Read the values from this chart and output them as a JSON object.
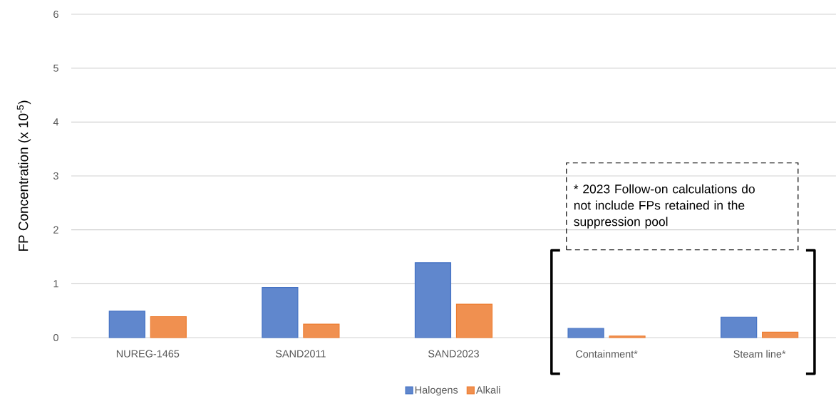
{
  "chart_data": {
    "type": "bar",
    "ylabel": "FP Concentration (x 10$^{-5}$)",
    "categories": [
      "NUREG-1465",
      "SAND2011",
      "SAND2023",
      "Containment*",
      "Steam line*"
    ],
    "series": [
      {
        "name": "Halogens",
        "color": "#4472c4",
        "values": [
          0.49,
          0.93,
          1.39,
          0.17,
          0.38
        ]
      },
      {
        "name": "Alkali",
        "color": "#ed7d31",
        "values": [
          0.39,
          0.25,
          0.62,
          0.03,
          0.1
        ]
      }
    ],
    "ylim": [
      0,
      6
    ],
    "yticks": [
      0,
      1,
      2,
      3,
      4,
      5,
      6
    ],
    "grid": "y",
    "legend": "bottom",
    "annotations": [
      "* 2023 Follow-on calculations do not include FPs retained in the suppression pool"
    ]
  }
}
